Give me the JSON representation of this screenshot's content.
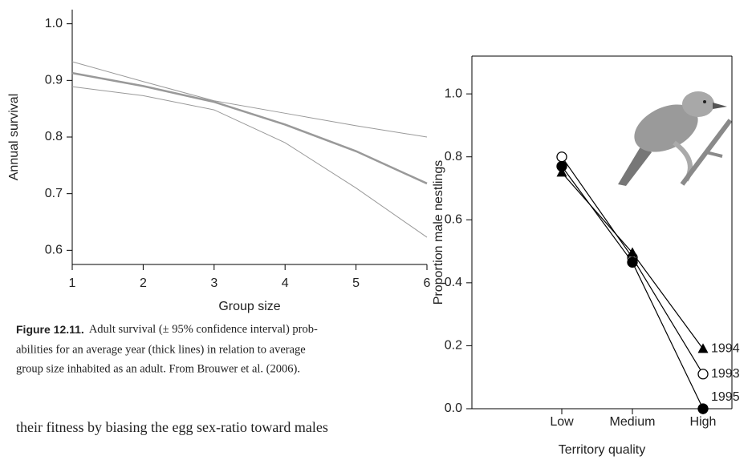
{
  "chart_data": [
    {
      "type": "line",
      "x_label": "Group size",
      "y_label": "Annual survival",
      "x": [
        1,
        2,
        3,
        4,
        5,
        6
      ],
      "series": [
        {
          "color": "#999999",
          "values": [
            0.933,
            0.898,
            0.864,
            0.842,
            0.82,
            0.8
          ]
        },
        {
          "color": "#999999",
          "values": [
            0.913,
            0.89,
            0.862,
            0.822,
            0.775,
            0.718
          ]
        },
        {
          "color": "#999999",
          "values": [
            0.889,
            0.873,
            0.848,
            0.79,
            0.71,
            0.623
          ]
        }
      ],
      "xlim": [
        1,
        6
      ],
      "xticks": [
        1,
        2,
        3,
        4,
        5,
        6
      ],
      "ylim": [
        0.575,
        1.025
      ],
      "yticks": [
        {
          "value": 0.6,
          "label": "0.6"
        },
        {
          "value": 0.7,
          "label": "0.7"
        },
        {
          "value": 0.8,
          "label": "0.8"
        },
        {
          "value": 0.9,
          "label": "0.9"
        },
        {
          "value": 1.0,
          "label": "1.0"
        }
      ]
    },
    {
      "type": "line",
      "x_label": "Territory quality",
      "y_label": "Proportion male nestlings",
      "categories": [
        "Low",
        "Medium",
        "High"
      ],
      "series": [
        {
          "name": "1993",
          "color": "#000000",
          "marker": "open-circle",
          "values": [
            0.8,
            0.48,
            0.11
          ]
        },
        {
          "name": "1994",
          "color": "#000000",
          "marker": "triangle",
          "values": [
            0.75,
            0.495,
            0.19
          ]
        },
        {
          "name": "1995",
          "color": "#000000",
          "marker": "filled-circle",
          "values": [
            0.77,
            0.465,
            0.0
          ]
        }
      ],
      "ylim": [
        0,
        1.12
      ],
      "yticks": [
        {
          "value": 0,
          "label": "0.0"
        },
        {
          "value": 0.2,
          "label": "0.2"
        },
        {
          "value": 0.4,
          "label": "0.4"
        },
        {
          "value": 0.6,
          "label": "0.6"
        },
        {
          "value": 0.8,
          "label": "0.8"
        },
        {
          "value": 1.0,
          "label": "1.0"
        }
      ]
    }
  ],
  "caption": {
    "label": "Figure 12.11.",
    "lines": [
      "Adult survival (± 95% confidence interval) prob-",
      "abilities for an average year (thick lines) in relation to average",
      "group size inhabited as an adult. From Brouwer et al. (2006)."
    ]
  },
  "body_text": "their fitness by biasing the egg sex-ratio toward males"
}
